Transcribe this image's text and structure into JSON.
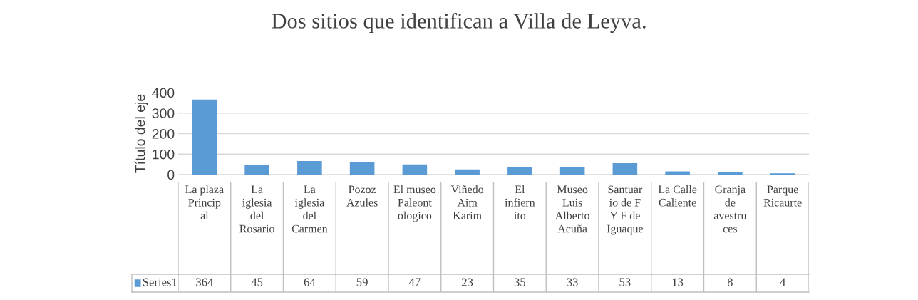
{
  "chart_data": {
    "type": "bar",
    "title": "Dos sitios que identifican a Villa de Leyva.",
    "ylabel": "Título del eje",
    "categories": [
      "La plaza Principal",
      "La iglesia del Rosario",
      "La iglesia del Carmen",
      "Pozoz Azules",
      "El museo Paleontologico",
      "Viñedo Aim Karim",
      "El infiernito",
      "Museo Luis Alberto Acuña",
      "Santuario de F Y F de Iguaque",
      "La Calle Caliente",
      "Granja de avestruces",
      "Parque Ricaurte"
    ],
    "series": [
      {
        "name": "Series1",
        "color": "#5b9bd5",
        "values": [
          364,
          45,
          64,
          59,
          47,
          23,
          35,
          33,
          53,
          13,
          8,
          4
        ]
      }
    ],
    "ylim": [
      0,
      400
    ],
    "yticks": [
      0,
      100,
      200,
      300,
      400
    ],
    "grid": "y",
    "data_labels": true
  }
}
